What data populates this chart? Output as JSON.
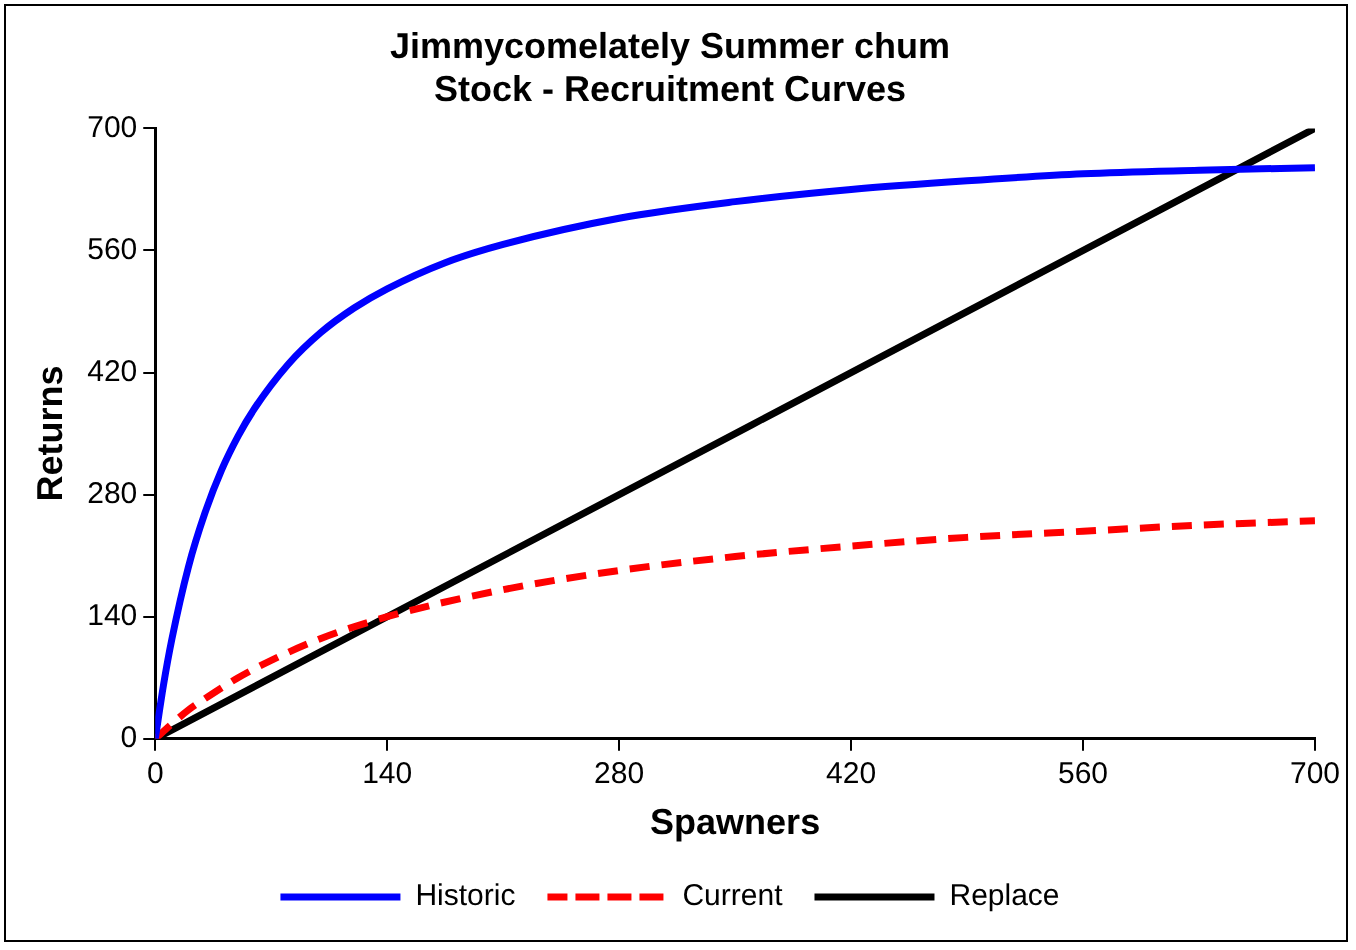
{
  "chart_data": {
    "type": "line",
    "title": "Jimmycomelately Summer chum\nStock - Recruitment Curves",
    "xlabel": "Spawners",
    "ylabel": "Returns",
    "xlim": [
      0,
      700
    ],
    "xticks": [
      0,
      140,
      280,
      420,
      560,
      700
    ],
    "ylim": [
      0,
      700
    ],
    "yticks": [
      0,
      140,
      280,
      420,
      560,
      700
    ],
    "grid": false,
    "legend": "bottom",
    "marker": "none",
    "series": [
      {
        "name": "Historic",
        "color": "#0000ff",
        "line_style": "solid",
        "x": [
          0,
          5,
          10,
          20,
          30,
          40,
          50,
          60,
          80,
          100,
          120,
          140,
          175,
          210,
          280,
          350,
          420,
          490,
          560,
          630,
          700
        ],
        "values": [
          0,
          62,
          114,
          197,
          259,
          308,
          347,
          379,
          429,
          466,
          494,
          516,
          546,
          567,
          597,
          616,
          630,
          640,
          648,
          652,
          655
        ]
      },
      {
        "name": "Current",
        "color": "#ff0000",
        "line_style": "dashed",
        "x": [
          0,
          10,
          20,
          30,
          50,
          70,
          100,
          140,
          210,
          280,
          350,
          420,
          490,
          560,
          630,
          700
        ],
        "values": [
          0,
          17,
          33,
          46,
          70,
          90,
          115,
          140,
          171,
          193,
          209,
          221,
          231,
          238,
          245,
          250
        ]
      },
      {
        "name": "Replace",
        "color": "#000000",
        "line_style": "solid",
        "x": [
          0,
          700
        ],
        "values": [
          0,
          700
        ]
      }
    ]
  }
}
